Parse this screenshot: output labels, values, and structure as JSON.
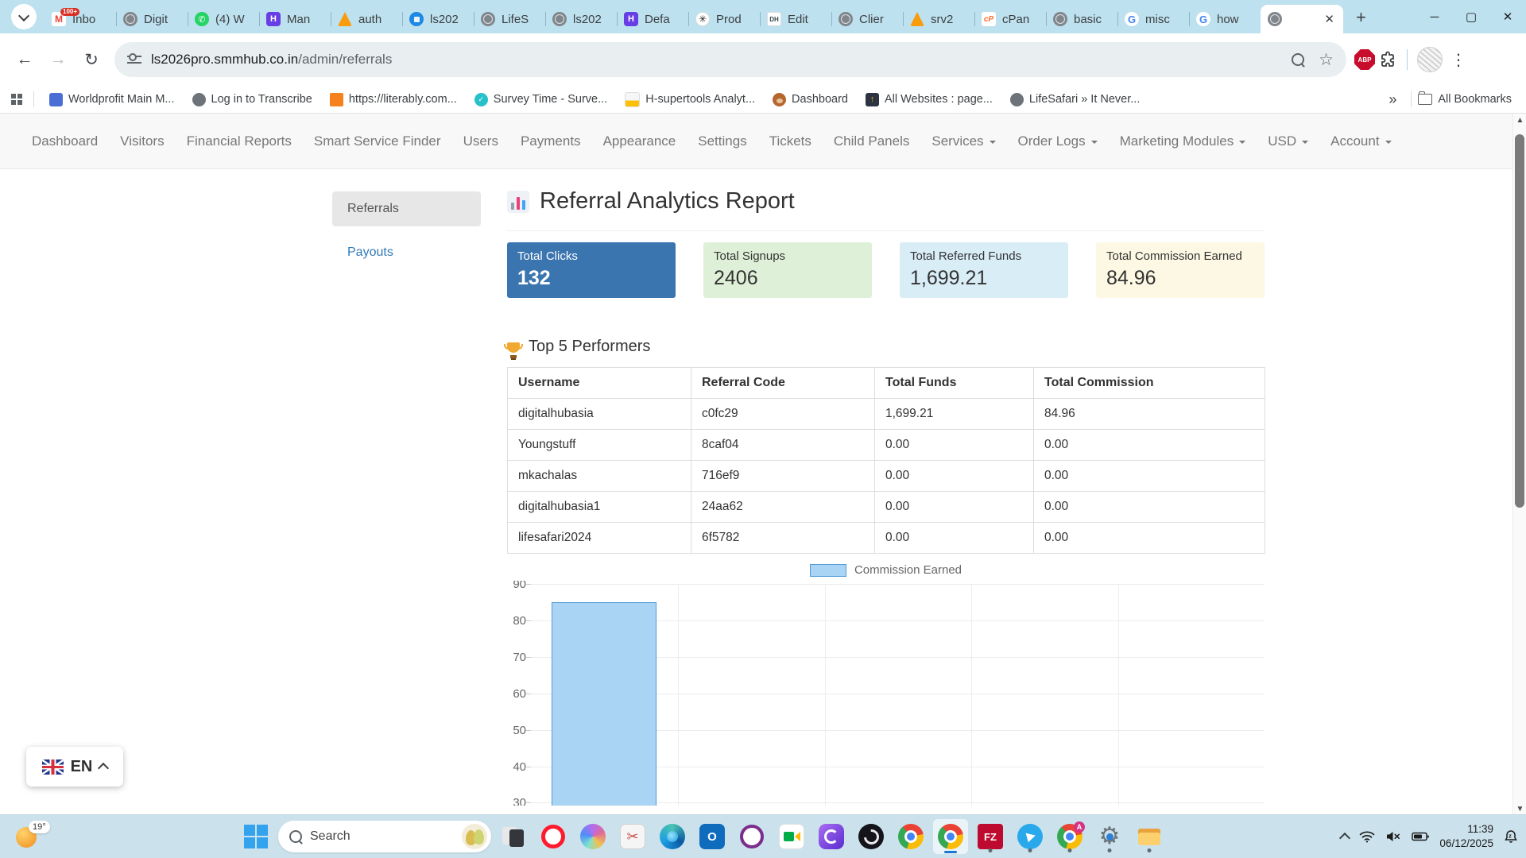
{
  "browser": {
    "tabs": [
      {
        "icon": "gmail",
        "label": "Inbo",
        "badge": "100+"
      },
      {
        "icon": "globe",
        "label": "Digit"
      },
      {
        "icon": "whatsapp",
        "label": "(4) W"
      },
      {
        "icon": "hostinger",
        "label": "Man"
      },
      {
        "icon": "phpmyadmin",
        "label": "auth"
      },
      {
        "icon": "disk",
        "label": "ls202"
      },
      {
        "icon": "globe",
        "label": "LifeS"
      },
      {
        "icon": "globe",
        "label": "ls202"
      },
      {
        "icon": "hostinger",
        "label": "Defa"
      },
      {
        "icon": "openai",
        "label": "Prod"
      },
      {
        "icon": "dh",
        "label": "Edit"
      },
      {
        "icon": "globe",
        "label": "Clier"
      },
      {
        "icon": "phpmyadmin",
        "label": "srv2"
      },
      {
        "icon": "cpanel",
        "label": "cPan"
      },
      {
        "icon": "globe",
        "label": "basic"
      },
      {
        "icon": "google",
        "label": "misc"
      },
      {
        "icon": "google",
        "label": "how"
      },
      {
        "icon": "globe",
        "label": "",
        "active": true
      }
    ],
    "address": {
      "host": "ls2026pro.smmhub.co.in",
      "path": "/admin/referrals"
    },
    "extensions": {
      "abp_label": "ABP"
    },
    "bookmarks": [
      {
        "icon": "worldprofit",
        "label": "Worldprofit Main M..."
      },
      {
        "icon": "globe",
        "label": "Log in to Transcribe"
      },
      {
        "icon": "literably",
        "label": "https://literably.com..."
      },
      {
        "icon": "surveytime",
        "label": "Survey Time - Surve..."
      },
      {
        "icon": "hsupertools",
        "label": "H-supertools Analyt..."
      },
      {
        "icon": "monkey",
        "label": "Dashboard"
      },
      {
        "icon": "allwebsites",
        "label": "All Websites : page..."
      },
      {
        "icon": "globe",
        "label": "LifeSafari » It Never..."
      }
    ],
    "all_bookmarks_label": "All Bookmarks"
  },
  "nav": {
    "items": [
      {
        "label": "Dashboard"
      },
      {
        "label": "Visitors"
      },
      {
        "label": "Financial Reports"
      },
      {
        "label": "Smart Service Finder"
      },
      {
        "label": "Users"
      },
      {
        "label": "Payments"
      },
      {
        "label": "Appearance"
      },
      {
        "label": "Settings"
      },
      {
        "label": "Tickets"
      },
      {
        "label": "Child Panels"
      },
      {
        "label": "Services",
        "dropdown": true
      },
      {
        "label": "Order Logs",
        "dropdown": true
      },
      {
        "label": "Marketing Modules",
        "dropdown": true
      },
      {
        "label": "USD",
        "dropdown": true
      },
      {
        "label": "Account",
        "dropdown": true
      }
    ]
  },
  "sidebar": {
    "items": [
      {
        "label": "Referrals",
        "active": true
      },
      {
        "label": "Payouts",
        "active": false
      }
    ]
  },
  "page": {
    "title": "Referral Analytics Report",
    "stats": [
      {
        "label": "Total Clicks",
        "value": "132",
        "bg": "#3a75b0",
        "fg": "#ffffff"
      },
      {
        "label": "Total Signups",
        "value": "2406",
        "bg": "#dff0d8",
        "fg": "#333333"
      },
      {
        "label": "Total Referred Funds",
        "value": "1,699.21",
        "bg": "#d9edf7",
        "fg": "#333333"
      },
      {
        "label": "Total Commission Earned",
        "value": "84.96",
        "bg": "#fcf8e3",
        "fg": "#333333"
      }
    ],
    "performers": {
      "heading": "Top 5 Performers",
      "columns": [
        "Username",
        "Referral Code",
        "Total Funds",
        "Total Commission"
      ],
      "rows": [
        [
          "digitalhubasia",
          "c0fc29",
          "1,699.21",
          "84.96"
        ],
        [
          "Youngstuff",
          "8caf04",
          "0.00",
          "0.00"
        ],
        [
          "mkachalas",
          "716ef9",
          "0.00",
          "0.00"
        ],
        [
          "digitalhubasia1",
          "24aa62",
          "0.00",
          "0.00"
        ],
        [
          "lifesafari2024",
          "6f5782",
          "0.00",
          "0.00"
        ]
      ]
    }
  },
  "chart_data": {
    "type": "bar",
    "title": "",
    "legend": [
      "Commission Earned"
    ],
    "legend_position": "top-center",
    "categories": [
      "",
      "",
      "",
      "",
      ""
    ],
    "series": [
      {
        "name": "Commission Earned",
        "values": [
          84.96,
          0,
          0,
          0,
          0
        ]
      }
    ],
    "y_ticks_visible": [
      90,
      80,
      70,
      60,
      50,
      40,
      30
    ],
    "ylim_visible_top": 90,
    "grid": true,
    "bar_fill": "#a9d4f3",
    "bar_border": "#509bd8",
    "note_visible_portion": "chart is clipped by viewport below y=30 tick"
  },
  "language": {
    "code": "EN"
  },
  "taskbar": {
    "weather_temp": "19°",
    "search_label": "Search",
    "icons": [
      {
        "name": "squares",
        "cls": "g-squares"
      },
      {
        "name": "opera",
        "cls": "g-opera"
      },
      {
        "name": "copilot",
        "cls": "g-copilot"
      },
      {
        "name": "snipping-tool",
        "cls": "g-snip"
      },
      {
        "name": "edge",
        "cls": "g-edge"
      },
      {
        "name": "outlook",
        "cls": "g-outlook"
      },
      {
        "name": "o-ring-app",
        "cls": "g-oring"
      },
      {
        "name": "google-meet",
        "cls": "g-meet"
      },
      {
        "name": "clipchamp",
        "cls": "g-clipchamp"
      },
      {
        "name": "obs-studio",
        "cls": "g-obs"
      },
      {
        "name": "chrome",
        "cls": "g-chrome"
      },
      {
        "name": "chrome",
        "cls": "g-chrome",
        "active": true
      },
      {
        "name": "filezilla",
        "cls": "g-filezilla",
        "dot": true
      },
      {
        "name": "telegram",
        "cls": "g-telegram",
        "dot": true
      },
      {
        "name": "chrome-profile",
        "cls": "g-chrome",
        "badge": "A",
        "dot": true
      },
      {
        "name": "settings-gear",
        "cls": "g-gear",
        "dot": true
      },
      {
        "name": "file-explorer",
        "cls": "g-folder",
        "dot": true
      }
    ],
    "time": "11:39",
    "date": "06/12/2025"
  }
}
